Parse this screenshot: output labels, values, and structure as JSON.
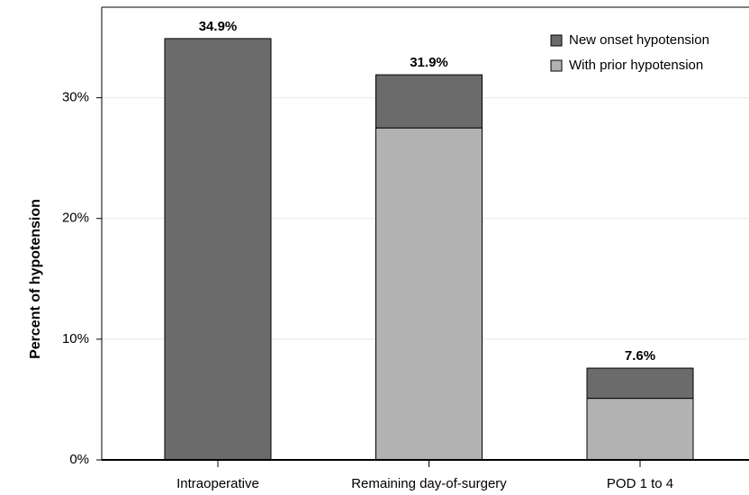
{
  "chart_data": {
    "type": "stacked_bar",
    "y_label": "Percent of hypotension",
    "categories": [
      "Intraoperative",
      "Remaining day-of-surgery",
      "POD 1 to 4"
    ],
    "series": [
      {
        "name": "With prior hypotension",
        "color": "#b2b2b2",
        "values": [
          null,
          27.5,
          5.1
        ]
      },
      {
        "name": "New onset hypotension",
        "color": "#6b6b6b",
        "values": [
          34.9,
          4.4,
          2.5
        ]
      }
    ],
    "totals": [
      34.9,
      31.9,
      7.6
    ],
    "total_value_labels": [
      "34.9%",
      "31.9%",
      "7.6%"
    ],
    "ylim": [
      0,
      37.5
    ],
    "yticks": [
      {
        "value": 0,
        "label": "0%"
      },
      {
        "value": 10,
        "label": "10%"
      },
      {
        "value": 20,
        "label": "20%"
      },
      {
        "value": 30,
        "label": "30%"
      }
    ],
    "grid": true,
    "legend_position": "top-right"
  }
}
